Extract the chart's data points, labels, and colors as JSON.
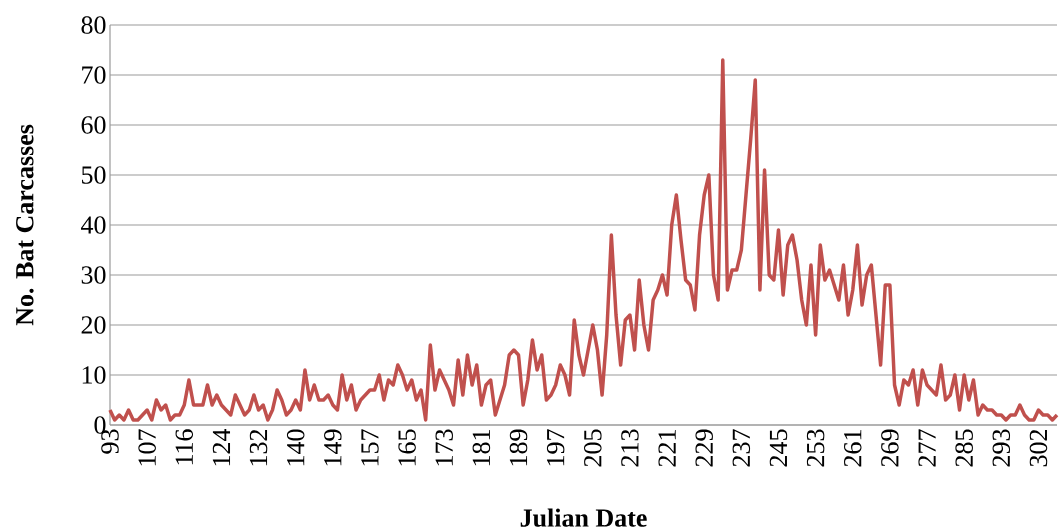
{
  "chart_data": {
    "type": "line",
    "xlabel": "Julian Date",
    "ylabel": "No. Bat Carcasses",
    "categories": [
      "93",
      null,
      null,
      null,
      null,
      null,
      null,
      null,
      "107",
      null,
      null,
      null,
      null,
      null,
      null,
      null,
      "116",
      null,
      null,
      null,
      null,
      null,
      null,
      null,
      "124",
      null,
      null,
      null,
      null,
      null,
      null,
      null,
      "132",
      null,
      null,
      null,
      null,
      null,
      null,
      null,
      "140",
      null,
      null,
      null,
      null,
      null,
      null,
      null,
      "149",
      null,
      null,
      null,
      null,
      null,
      null,
      null,
      "157",
      null,
      null,
      null,
      null,
      null,
      null,
      null,
      "165",
      null,
      null,
      null,
      null,
      null,
      null,
      null,
      "173",
      null,
      null,
      null,
      null,
      null,
      null,
      null,
      "181",
      null,
      null,
      null,
      null,
      null,
      null,
      null,
      "189",
      null,
      null,
      null,
      null,
      null,
      null,
      null,
      "197",
      null,
      null,
      null,
      null,
      null,
      null,
      null,
      "205",
      null,
      null,
      null,
      null,
      null,
      null,
      null,
      "213",
      null,
      null,
      null,
      null,
      null,
      null,
      null,
      "221",
      null,
      null,
      null,
      null,
      null,
      null,
      null,
      "229",
      null,
      null,
      null,
      null,
      null,
      null,
      null,
      "237",
      null,
      null,
      null,
      null,
      null,
      null,
      null,
      "245",
      null,
      null,
      null,
      null,
      null,
      null,
      null,
      "253",
      null,
      null,
      null,
      null,
      null,
      null,
      null,
      "261",
      null,
      null,
      null,
      null,
      null,
      null,
      null,
      "269",
      null,
      null,
      null,
      null,
      null,
      null,
      null,
      "277",
      null,
      null,
      null,
      null,
      null,
      null,
      null,
      "285",
      null,
      null,
      null,
      null,
      null,
      null,
      null,
      "293",
      null,
      null,
      null,
      null,
      null,
      null,
      null,
      "302",
      null,
      null,
      null,
      null
    ],
    "series": [
      {
        "color": "#c0504d",
        "values": [
          3,
          1,
          2,
          1,
          3,
          1,
          1,
          2,
          3,
          1,
          5,
          3,
          4,
          1,
          2,
          2,
          4,
          9,
          4,
          4,
          4,
          8,
          4,
          6,
          4,
          3,
          2,
          6,
          4,
          2,
          3,
          6,
          3,
          4,
          1,
          3,
          7,
          5,
          2,
          3,
          5,
          3,
          11,
          5,
          8,
          5,
          5,
          6,
          4,
          3,
          10,
          5,
          8,
          3,
          5,
          6,
          7,
          7,
          10,
          5,
          9,
          8,
          12,
          10,
          7,
          9,
          5,
          7,
          1,
          16,
          7,
          11,
          9,
          7,
          4,
          13,
          6,
          14,
          8,
          12,
          4,
          8,
          9,
          2,
          5,
          8,
          14,
          15,
          14,
          4,
          9,
          17,
          11,
          14,
          5,
          6,
          8,
          12,
          10,
          6,
          21,
          14,
          10,
          15,
          20,
          15,
          6,
          18,
          38,
          22,
          12,
          21,
          22,
          15,
          29,
          20,
          15,
          25,
          27,
          30,
          26,
          40,
          46,
          37,
          29,
          28,
          23,
          38,
          46,
          50,
          30,
          25,
          73,
          27,
          31,
          31,
          35,
          46,
          57,
          69,
          27,
          51,
          30,
          29,
          39,
          26,
          36,
          38,
          33,
          25,
          20,
          32,
          18,
          36,
          29,
          31,
          28,
          25,
          32,
          22,
          27,
          36,
          24,
          30,
          32,
          22,
          12,
          28,
          28,
          8,
          4,
          9,
          8,
          11,
          4,
          11,
          8,
          7,
          6,
          12,
          5,
          6,
          10,
          3,
          10,
          5,
          9,
          2,
          4,
          3,
          3,
          2,
          2,
          1,
          2,
          2,
          4,
          2,
          1,
          1,
          3,
          2,
          2,
          1,
          2
        ]
      }
    ],
    "ylim": [
      0,
      80
    ],
    "yticks": [
      0,
      10,
      20,
      30,
      40,
      50,
      60,
      70,
      80
    ],
    "grid": "y",
    "marker": "none",
    "line_style": "solid"
  }
}
